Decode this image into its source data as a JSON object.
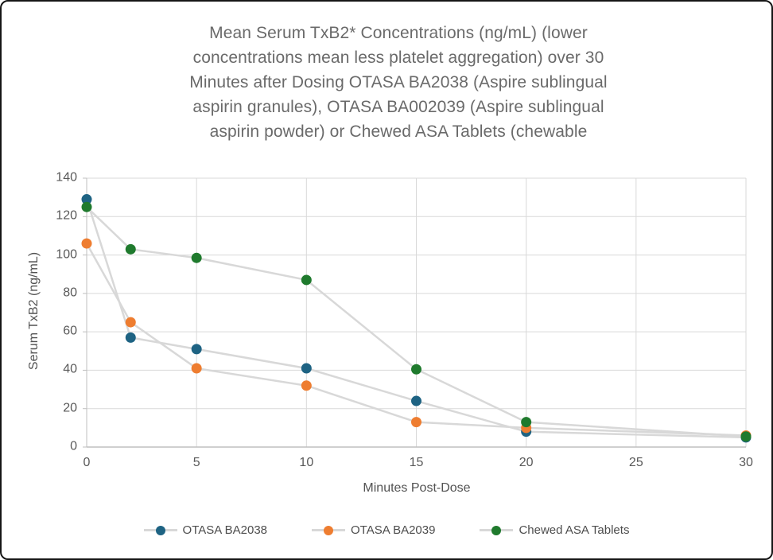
{
  "title_lines": [
    "Mean Serum TxB2* Concentrations (ng/mL) (lower",
    "concentrations mean less platelet aggregation) over 30",
    "Minutes after Dosing OTASA BA2038 (Aspire sublingual",
    "aspirin granules), OTASA BA002039 (Aspire sublingual",
    "aspirin powder) or Chewed ASA Tablets (chewable"
  ],
  "chart_data": {
    "type": "line",
    "title": "Mean Serum TxB2* Concentrations (ng/mL) (lower concentrations mean less platelet aggregation) over 30 Minutes after Dosing OTASA BA2038 (Aspire sublingual aspirin granules), OTASA BA002039 (Aspire sublingual aspirin powder) or Chewed ASA Tablets (chewable",
    "xlabel": "Minutes Post-Dose",
    "ylabel": "Serum TxB2 (ng/mL)",
    "xlim": [
      0,
      30
    ],
    "ylim": [
      0,
      140
    ],
    "xticks": [
      0,
      5,
      10,
      15,
      20,
      25,
      30
    ],
    "yticks": [
      0,
      20,
      40,
      60,
      80,
      100,
      120,
      140
    ],
    "grid": true,
    "legend_position": "bottom",
    "marker_style": "circle",
    "connector_line_color": "#d8d8d8",
    "gridline_color": "#d9d9d9",
    "axis_line_color": "#bfbfbf",
    "x": [
      0,
      2,
      5,
      10,
      15,
      20,
      30
    ],
    "series": [
      {
        "name": "OTASA BA2038",
        "color": "#1e6383",
        "values": [
          129,
          57,
          51,
          41,
          24,
          8,
          5
        ]
      },
      {
        "name": "OTASA BA2039",
        "color": "#ee7d30",
        "values": [
          106,
          65,
          41,
          32,
          13,
          10,
          6
        ]
      },
      {
        "name": "Chewed ASA Tablets",
        "color": "#1f7a2d",
        "values": [
          125,
          103,
          98.5,
          87,
          40.5,
          13,
          5.5
        ]
      }
    ]
  }
}
